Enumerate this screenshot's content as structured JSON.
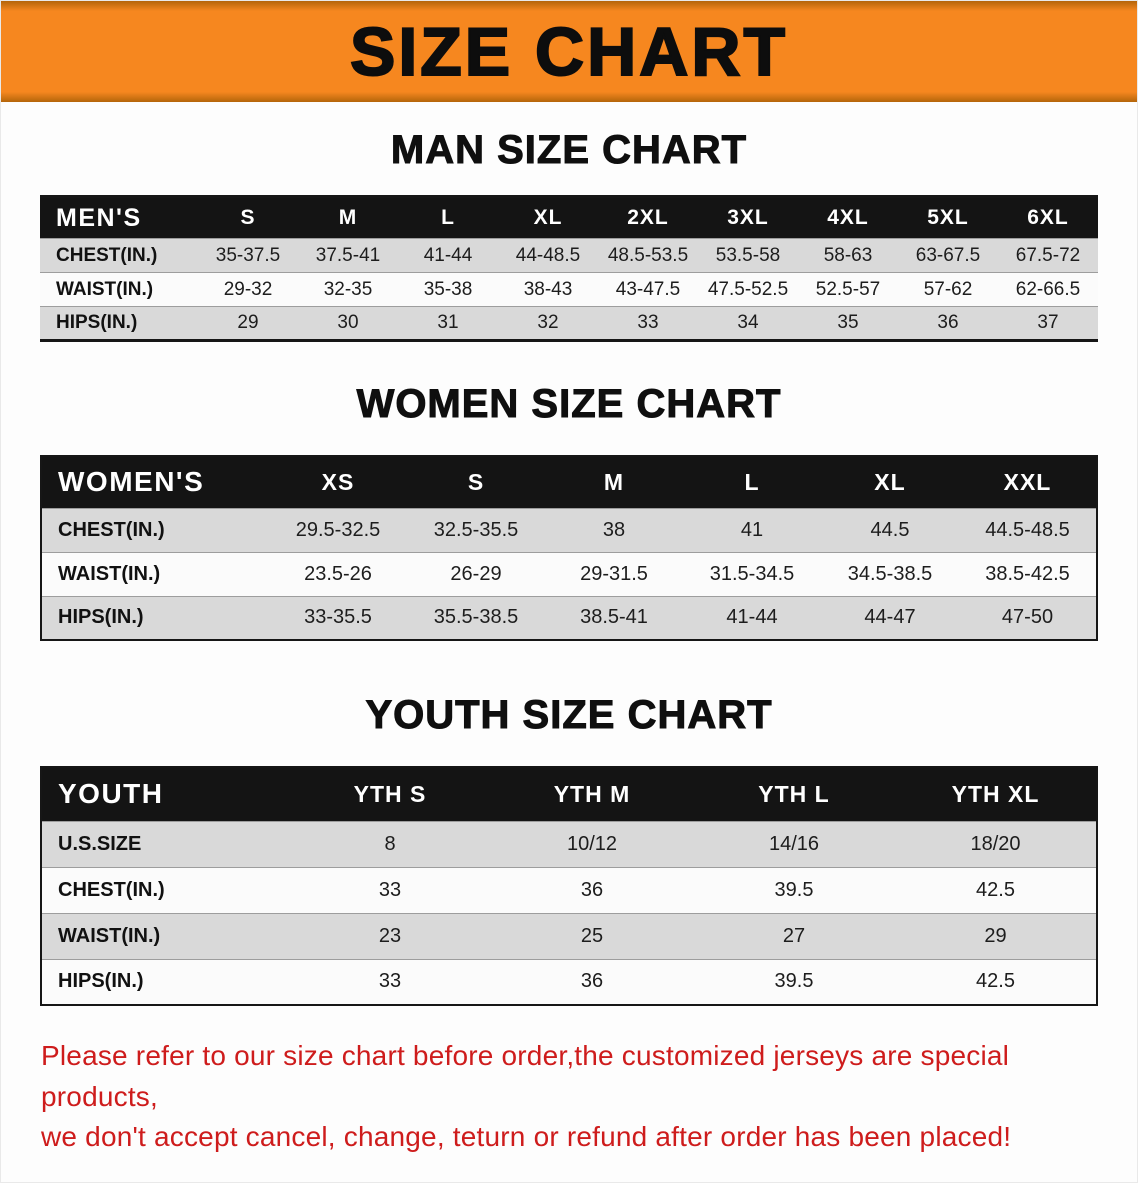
{
  "banner": {
    "title": "SIZE CHART"
  },
  "men": {
    "heading": "MAN SIZE CHART",
    "table": {
      "header": [
        "MEN'S",
        "S",
        "M",
        "L",
        "XL",
        "2XL",
        "3XL",
        "4XL",
        "5XL",
        "6XL"
      ],
      "rows": [
        {
          "label": "CHEST(IN.)",
          "values": [
            "35-37.5",
            "37.5-41",
            "41-44",
            "44-48.5",
            "48.5-53.5",
            "53.5-58",
            "58-63",
            "63-67.5",
            "67.5-72"
          ]
        },
        {
          "label": "WAIST(IN.)",
          "values": [
            "29-32",
            "32-35",
            "35-38",
            "38-43",
            "43-47.5",
            "47.5-52.5",
            "52.5-57",
            "57-62",
            "62-66.5"
          ]
        },
        {
          "label": "HIPS(IN.)",
          "values": [
            "29",
            "30",
            "31",
            "32",
            "33",
            "34",
            "35",
            "36",
            "37"
          ]
        }
      ]
    }
  },
  "women": {
    "heading": "WOMEN SIZE CHART",
    "table": {
      "header": [
        "WOMEN'S",
        "XS",
        "S",
        "M",
        "L",
        "XL",
        "XXL"
      ],
      "rows": [
        {
          "label": "CHEST(IN.)",
          "values": [
            "29.5-32.5",
            "32.5-35.5",
            "38",
            "41",
            "44.5",
            "44.5-48.5"
          ]
        },
        {
          "label": "WAIST(IN.)",
          "values": [
            "23.5-26",
            "26-29",
            "29-31.5",
            "31.5-34.5",
            "34.5-38.5",
            "38.5-42.5"
          ]
        },
        {
          "label": "HIPS(IN.)",
          "values": [
            "33-35.5",
            "35.5-38.5",
            "38.5-41",
            "41-44",
            "44-47",
            "47-50"
          ]
        }
      ]
    }
  },
  "youth": {
    "heading": "YOUTH SIZE CHART",
    "table": {
      "header": [
        "YOUTH",
        "YTH S",
        "YTH M",
        "YTH L",
        "YTH XL"
      ],
      "rows": [
        {
          "label": "U.S.SIZE",
          "values": [
            "8",
            "10/12",
            "14/16",
            "18/20"
          ]
        },
        {
          "label": "CHEST(IN.)",
          "values": [
            "33",
            "36",
            "39.5",
            "42.5"
          ]
        },
        {
          "label": "WAIST(IN.)",
          "values": [
            "23",
            "25",
            "27",
            "29"
          ]
        },
        {
          "label": "HIPS(IN.)",
          "values": [
            "33",
            "36",
            "39.5",
            "42.5"
          ]
        }
      ]
    }
  },
  "footer": {
    "lines": [
      "Please refer to our size chart before order,the customized jerseys are special products,",
      "we don't accept cancel, change, teturn or refund after order has been placed!"
    ]
  },
  "colors": {
    "banner_orange": "#f6871f",
    "banner_edge": "#b4650a",
    "header_black": "#141414",
    "row_gray": "#d9d9d9",
    "note_red": "#ce1c1c"
  }
}
